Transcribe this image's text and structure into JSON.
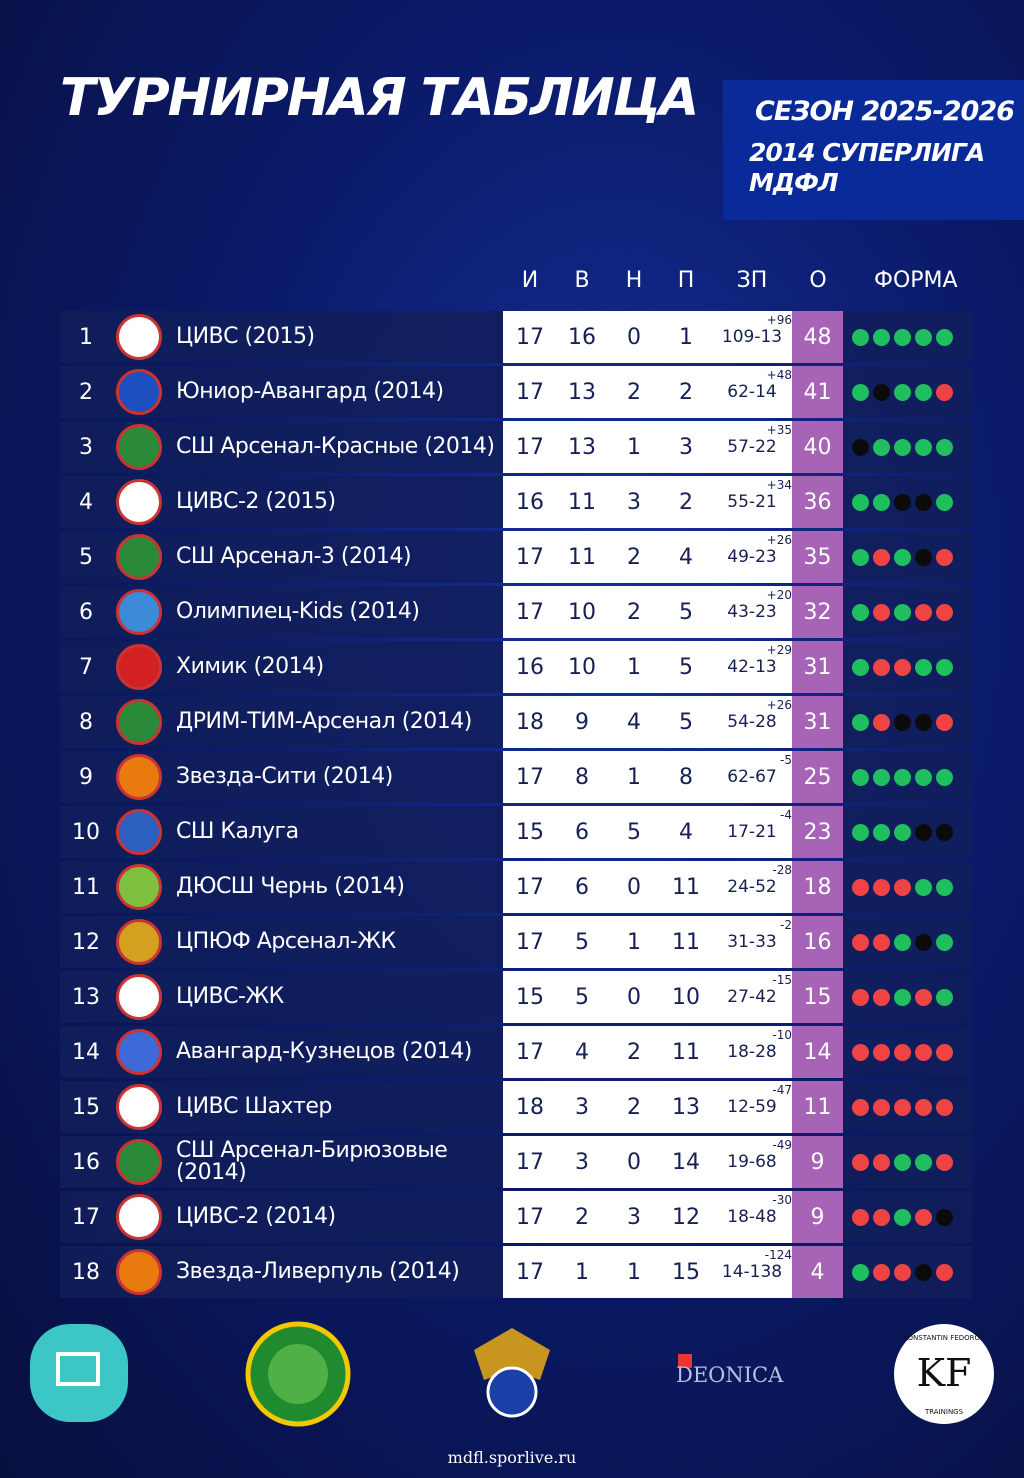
{
  "header": {
    "title": "ТУРНИРНАЯ ТАБЛИЦА",
    "season": "СЕЗОН 2025-2026",
    "league": "2014 СУПЕРЛИГА",
    "organizer": "МДФЛ"
  },
  "table": {
    "columns": [
      "И",
      "В",
      "Н",
      "П",
      "ЗП",
      "О",
      "ФОРМА"
    ],
    "form_colors": {
      "W": "#1fbf5f",
      "D": "#0b0b0b",
      "L": "#f04444"
    },
    "rows": [
      [
        "1",
        "ЦИВС (2015)",
        "17",
        "16",
        "0",
        "1",
        "109-13",
        "+96",
        "48",
        [
          "W",
          "W",
          "W",
          "W",
          "W"
        ]
      ],
      [
        "2",
        "Юниор-Авангард (2014)",
        "17",
        "13",
        "2",
        "2",
        "62-14",
        "+48",
        "41",
        [
          "W",
          "D",
          "W",
          "W",
          "L"
        ]
      ],
      [
        "3",
        "СШ Арсенал-Красные (2014)",
        "17",
        "13",
        "1",
        "3",
        "57-22",
        "+35",
        "40",
        [
          "D",
          "W",
          "W",
          "W",
          "W"
        ]
      ],
      [
        "4",
        "ЦИВС-2 (2015)",
        "16",
        "11",
        "3",
        "2",
        "55-21",
        "+34",
        "36",
        [
          "W",
          "W",
          "D",
          "D",
          "W"
        ]
      ],
      [
        "5",
        "СШ Арсенал-3 (2014)",
        "17",
        "11",
        "2",
        "4",
        "49-23",
        "+26",
        "35",
        [
          "W",
          "L",
          "W",
          "D",
          "L"
        ]
      ],
      [
        "6",
        "Олимпиец-Kids (2014)",
        "17",
        "10",
        "2",
        "5",
        "43-23",
        "+20",
        "32",
        [
          "W",
          "L",
          "W",
          "L",
          "L"
        ]
      ],
      [
        "7",
        "Химик (2014)",
        "16",
        "10",
        "1",
        "5",
        "42-13",
        "+29",
        "31",
        [
          "W",
          "L",
          "L",
          "W",
          "W"
        ]
      ],
      [
        "8",
        "ДРИМ-ТИМ-Арсенал (2014)",
        "18",
        "9",
        "4",
        "5",
        "54-28",
        "+26",
        "31",
        [
          "W",
          "L",
          "D",
          "D",
          "L"
        ]
      ],
      [
        "9",
        "Звезда-Сити (2014)",
        "17",
        "8",
        "1",
        "8",
        "62-67",
        "-5",
        "25",
        [
          "W",
          "W",
          "W",
          "W",
          "W"
        ]
      ],
      [
        "10",
        "СШ Калуга",
        "15",
        "6",
        "5",
        "4",
        "17-21",
        "-4",
        "23",
        [
          "W",
          "W",
          "W",
          "D",
          "D"
        ]
      ],
      [
        "11",
        "ДЮСШ Чернь (2014)",
        "17",
        "6",
        "0",
        "11",
        "24-52",
        "-28",
        "18",
        [
          "L",
          "L",
          "L",
          "W",
          "W"
        ]
      ],
      [
        "12",
        "ЦПЮФ Арсенал-ЖК",
        "17",
        "5",
        "1",
        "11",
        "31-33",
        "-2",
        "16",
        [
          "L",
          "L",
          "W",
          "D",
          "W"
        ]
      ],
      [
        "13",
        "ЦИВС-ЖК",
        "15",
        "5",
        "0",
        "10",
        "27-42",
        "-15",
        "15",
        [
          "L",
          "L",
          "W",
          "L",
          "W"
        ]
      ],
      [
        "14",
        "Авангард-Кузнецов (2014)",
        "17",
        "4",
        "2",
        "11",
        "18-28",
        "-10",
        "14",
        [
          "L",
          "L",
          "L",
          "L",
          "L"
        ]
      ],
      [
        "15",
        "ЦИВС Шахтер",
        "18",
        "3",
        "2",
        "13",
        "12-59",
        "-47",
        "11",
        [
          "L",
          "L",
          "L",
          "L",
          "L"
        ]
      ],
      [
        "16",
        "СШ Арсенал-Бирюзовые (2014)",
        "17",
        "3",
        "0",
        "14",
        "19-68",
        "-49",
        "9",
        [
          "L",
          "L",
          "W",
          "W",
          "L"
        ]
      ],
      [
        "17",
        "ЦИВС-2 (2014)",
        "17",
        "2",
        "3",
        "12",
        "18-48",
        "-30",
        "9",
        [
          "L",
          "L",
          "W",
          "L",
          "D"
        ]
      ],
      [
        "18",
        "Звезда-Ливерпуль (2014)",
        "17",
        "1",
        "1",
        "15",
        "14-138",
        "-124",
        "4",
        [
          "W",
          "L",
          "L",
          "D",
          "L"
        ]
      ]
    ]
  },
  "footer": {
    "sponsor": "DEONICA",
    "kf": "KF",
    "kf_name": "KONSTANTIN FEDOROV",
    "kf_sub": "TRAININGS",
    "url": "mdfl.sporlive.ru"
  }
}
